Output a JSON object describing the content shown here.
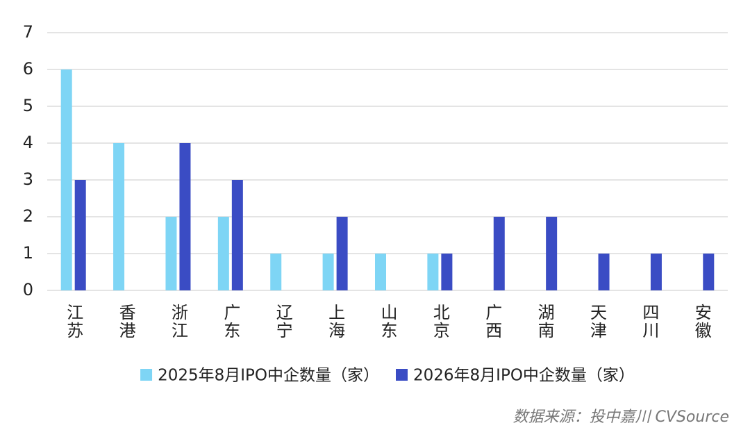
{
  "chart_data": {
    "type": "bar",
    "categories": [
      "江苏",
      "香港",
      "浙江",
      "广东",
      "辽宁",
      "上海",
      "山东",
      "北京",
      "广西",
      "湖南",
      "天津",
      "四川",
      "安徽"
    ],
    "series": [
      {
        "name": "2025年8月IPO中企数量（家）",
        "color": "#7ed5f5",
        "values": [
          6,
          4,
          2,
          2,
          1,
          1,
          1,
          1,
          0,
          0,
          0,
          0,
          0
        ]
      },
      {
        "name": "2026年8月IPO中企数量（家）",
        "color": "#3a4cc4",
        "values": [
          3,
          0,
          4,
          3,
          0,
          2,
          0,
          1,
          2,
          2,
          1,
          1,
          1
        ]
      }
    ],
    "ylim": [
      0,
      7
    ],
    "yticks": [
      0,
      1,
      2,
      3,
      4,
      5,
      6,
      7
    ],
    "grid": true,
    "legend": "bottom",
    "source": "数据来源：投中嘉川 CVSource"
  }
}
